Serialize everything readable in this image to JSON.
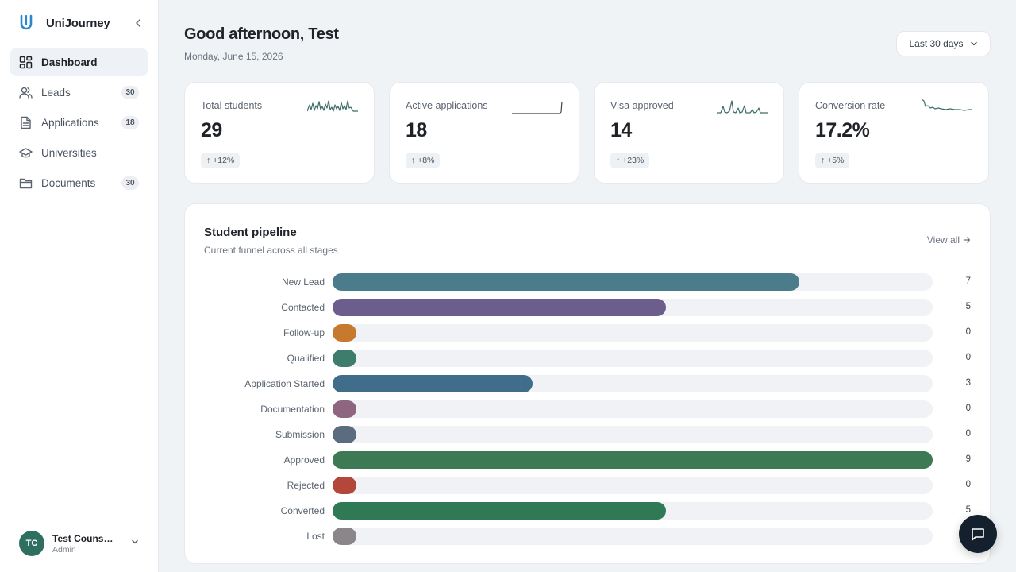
{
  "app": {
    "name": "UniJourney"
  },
  "sidebar": {
    "items": [
      {
        "label": "Dashboard",
        "icon": "dashboard-grid-icon",
        "badge": ""
      },
      {
        "label": "Leads",
        "icon": "users-icon",
        "badge": "30"
      },
      {
        "label": "Applications",
        "icon": "file-text-icon",
        "badge": "18"
      },
      {
        "label": "Universities",
        "icon": "graduation-cap-icon",
        "badge": ""
      },
      {
        "label": "Documents",
        "icon": "folder-icon",
        "badge": "30"
      }
    ],
    "user": {
      "initials": "TC",
      "name": "Test Couns…",
      "role": "Admin"
    }
  },
  "header": {
    "greeting": "Good afternoon, Test",
    "date": "Monday, June 15, 2026",
    "range": "Last 30 days"
  },
  "stats": [
    {
      "label": "Total students",
      "value": "29",
      "delta": "↑ +12%",
      "color": "#3c6e6a"
    },
    {
      "label": "Active applications",
      "value": "18",
      "delta": "↑ +8%",
      "color": "#3c4650"
    },
    {
      "label": "Visa approved",
      "value": "14",
      "delta": "↑ +23%",
      "color": "#3c6e6a"
    },
    {
      "label": "Conversion rate",
      "value": "17.2%",
      "delta": "↑ +5%",
      "color": "#3c6e6a"
    }
  ],
  "pipeline": {
    "title": "Student pipeline",
    "subtitle": "Current funnel across all stages",
    "view_all": "View all",
    "max": 9,
    "stages": [
      {
        "label": "New Lead",
        "count": 7,
        "color": "#4a7c8c"
      },
      {
        "label": "Contacted",
        "count": 5,
        "color": "#6b5e8c"
      },
      {
        "label": "Follow-up",
        "count": 0,
        "color": "#c77a2e"
      },
      {
        "label": "Qualified",
        "count": 0,
        "color": "#3e7d6c"
      },
      {
        "label": "Application Started",
        "count": 3,
        "color": "#3f6d8a"
      },
      {
        "label": "Documentation",
        "count": 0,
        "color": "#8e6680"
      },
      {
        "label": "Submission",
        "count": 0,
        "color": "#5b6b80"
      },
      {
        "label": "Approved",
        "count": 9,
        "color": "#3d7a54"
      },
      {
        "label": "Rejected",
        "count": 0,
        "color": "#b2473a"
      },
      {
        "label": "Converted",
        "count": 5,
        "color": "#2f7a54"
      },
      {
        "label": "Lost",
        "count": 0,
        "color": "#8a868a"
      }
    ]
  }
}
